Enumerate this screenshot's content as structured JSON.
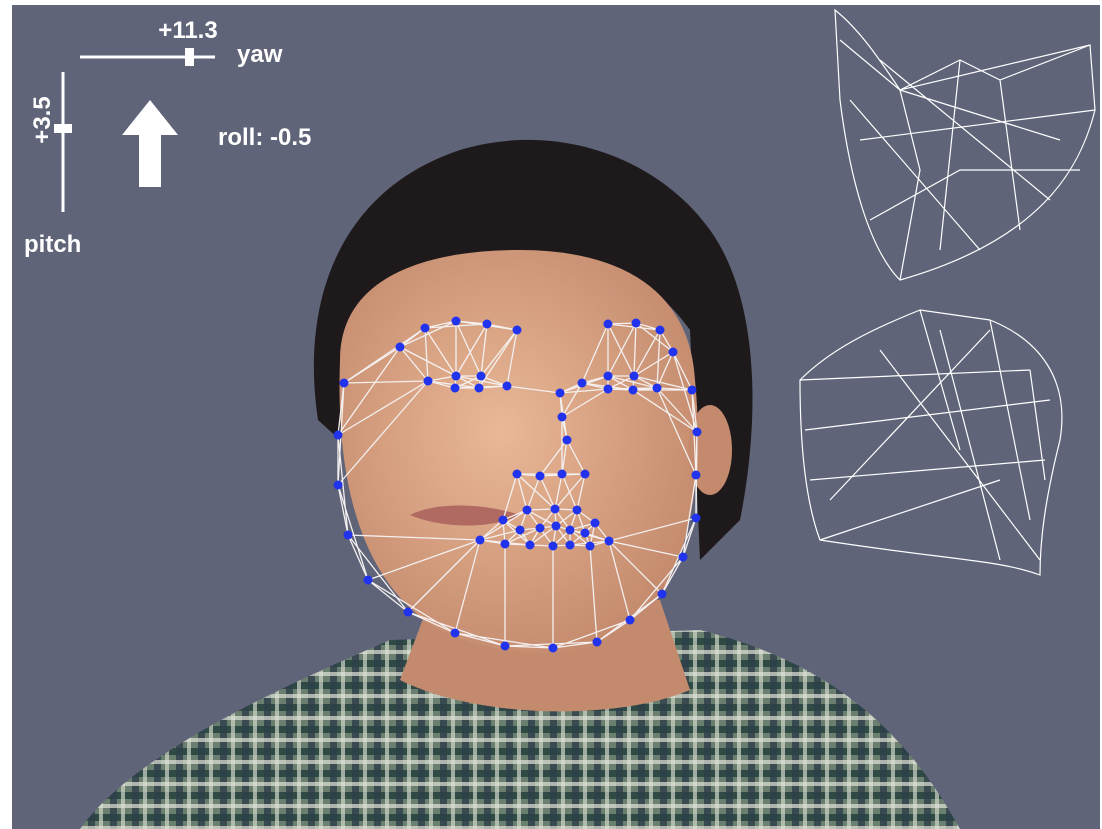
{
  "overlay": {
    "yaw_value": "+11.3",
    "yaw_label": "yaw",
    "pitch_value": "+3.5",
    "pitch_label": "pitch",
    "roll": "roll: -0.5"
  }
}
